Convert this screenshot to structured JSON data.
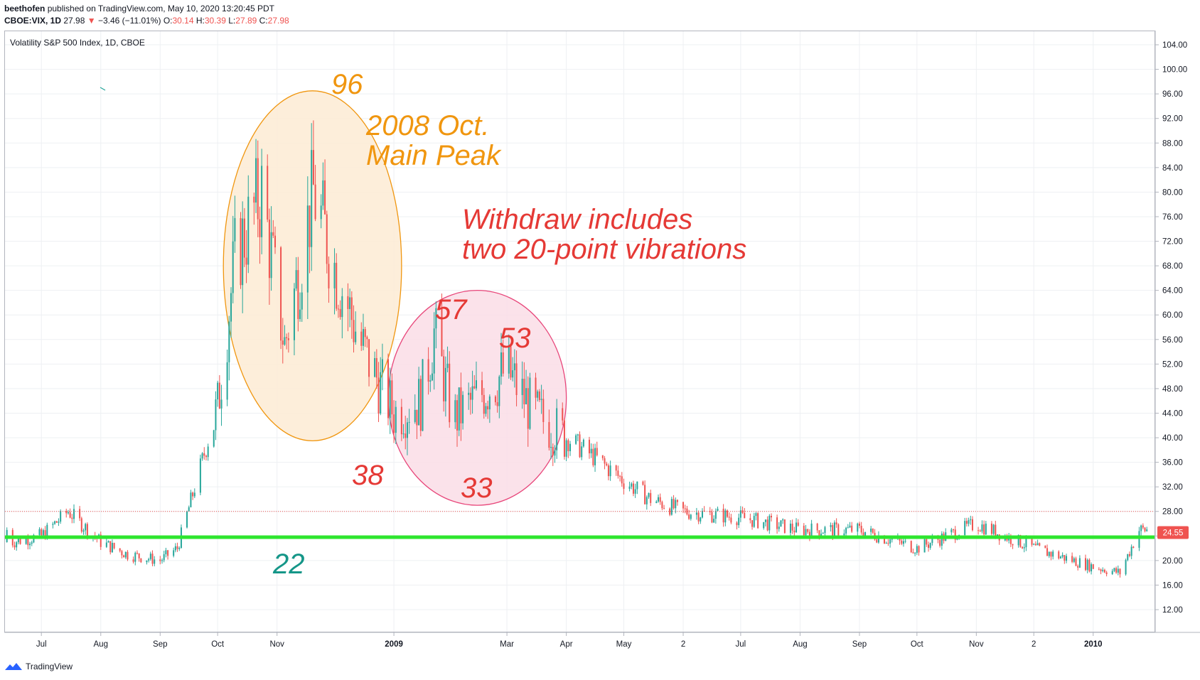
{
  "header": {
    "author": "beethofen",
    "published": "published on TradingView.com, May 10, 2020 13:20:45 PDT",
    "symbol": "CBOE:VIX, 1D",
    "last": "27.98",
    "change": "−3.46 (−11.01%)",
    "o_label": "O:",
    "o_value": "30.14",
    "h_label": "H:",
    "h_value": "30.39",
    "l_label": "L:",
    "l_value": "27.89",
    "c_label": "C:",
    "c_value": "27.98"
  },
  "footer": {
    "brand": "TradingView"
  },
  "colors": {
    "up": "#26a69a",
    "down": "#ef5350",
    "support": "#2ee62e",
    "orange": "#f0960f",
    "red": "#e53935",
    "teal": "#159688",
    "ellipse_fill": "#fdebd3",
    "circle_fill": "#fadde6"
  },
  "annotations": {
    "peak_value": "96",
    "peak_label": "2008 Oct.\nMain Peak",
    "withdraw": "Withdraw includes\ntwo 20-point vibrations",
    "v57": "57",
    "v53": "53",
    "v38": "38",
    "v33": "33",
    "v22": "22"
  },
  "chart_data": {
    "type": "candlestick",
    "title": "Volatility S&P 500 Index, 1D, CBOE",
    "ylim": [
      8,
      106
    ],
    "y_ticks": [
      "104.00",
      "100.00",
      "96.00",
      "92.00",
      "88.00",
      "84.00",
      "80.00",
      "76.00",
      "72.00",
      "68.00",
      "64.00",
      "60.00",
      "56.00",
      "52.00",
      "48.00",
      "44.00",
      "40.00",
      "36.00",
      "32.00",
      "28.00",
      "24.00",
      "20.00",
      "16.00",
      "12.00"
    ],
    "x_ticks": [
      "Jul",
      "Aug",
      "Sep",
      "Oct",
      "Nov",
      "2009",
      "Mar",
      "Apr",
      "May",
      "2",
      "Jul",
      "Aug",
      "Sep",
      "Oct",
      "Nov",
      "2",
      "2010"
    ],
    "x_ticks_bold": [
      "2009",
      "2010"
    ],
    "last_price_label": "24.55",
    "last_close_line": 28,
    "support_line": 23.8,
    "grid": true,
    "series": [
      {
        "x": "2008-06-15",
        "close": 23
      },
      {
        "x": "2008-07-01",
        "close": 24
      },
      {
        "x": "2008-07-15",
        "close": 28
      },
      {
        "x": "2008-08-01",
        "close": 23
      },
      {
        "x": "2008-08-15",
        "close": 21
      },
      {
        "x": "2008-09-01",
        "close": 20
      },
      {
        "x": "2008-09-10",
        "close": 22
      },
      {
        "x": "2008-09-20",
        "close": 33
      },
      {
        "x": "2008-10-01",
        "close": 45
      },
      {
        "x": "2008-10-10",
        "close": 69
      },
      {
        "x": "2008-10-24",
        "close": 80
      },
      {
        "x": "2008-11-05",
        "close": 55
      },
      {
        "x": "2008-11-20",
        "close": 80
      },
      {
        "x": "2008-12-01",
        "close": 68
      },
      {
        "x": "2008-12-15",
        "close": 55
      },
      {
        "x": "2009-01-01",
        "close": 44
      },
      {
        "x": "2009-01-15",
        "close": 46
      },
      {
        "x": "2009-01-22",
        "close": 57
      },
      {
        "x": "2009-02-01",
        "close": 43
      },
      {
        "x": "2009-02-15",
        "close": 47
      },
      {
        "x": "2009-03-01",
        "close": 51
      },
      {
        "x": "2009-03-15",
        "close": 44
      },
      {
        "x": "2009-04-01",
        "close": 40
      },
      {
        "x": "2009-04-15",
        "close": 37
      },
      {
        "x": "2009-05-01",
        "close": 33
      },
      {
        "x": "2009-05-15",
        "close": 30
      },
      {
        "x": "2009-06-01",
        "close": 28
      },
      {
        "x": "2009-07-01",
        "close": 27
      },
      {
        "x": "2009-08-01",
        "close": 25
      },
      {
        "x": "2009-09-01",
        "close": 25
      },
      {
        "x": "2009-10-01",
        "close": 22
      },
      {
        "x": "2009-11-01",
        "close": 26
      },
      {
        "x": "2009-12-01",
        "close": 22
      },
      {
        "x": "2010-01-01",
        "close": 19
      },
      {
        "x": "2010-01-15",
        "close": 18
      },
      {
        "x": "2010-01-25",
        "close": 25
      }
    ],
    "markers": [
      {
        "label": "96",
        "value": 96
      },
      {
        "label": "57",
        "value": 57
      },
      {
        "label": "53",
        "value": 53
      },
      {
        "label": "38",
        "value": 38
      },
      {
        "label": "33",
        "value": 33
      },
      {
        "label": "22",
        "value": 22
      }
    ]
  }
}
